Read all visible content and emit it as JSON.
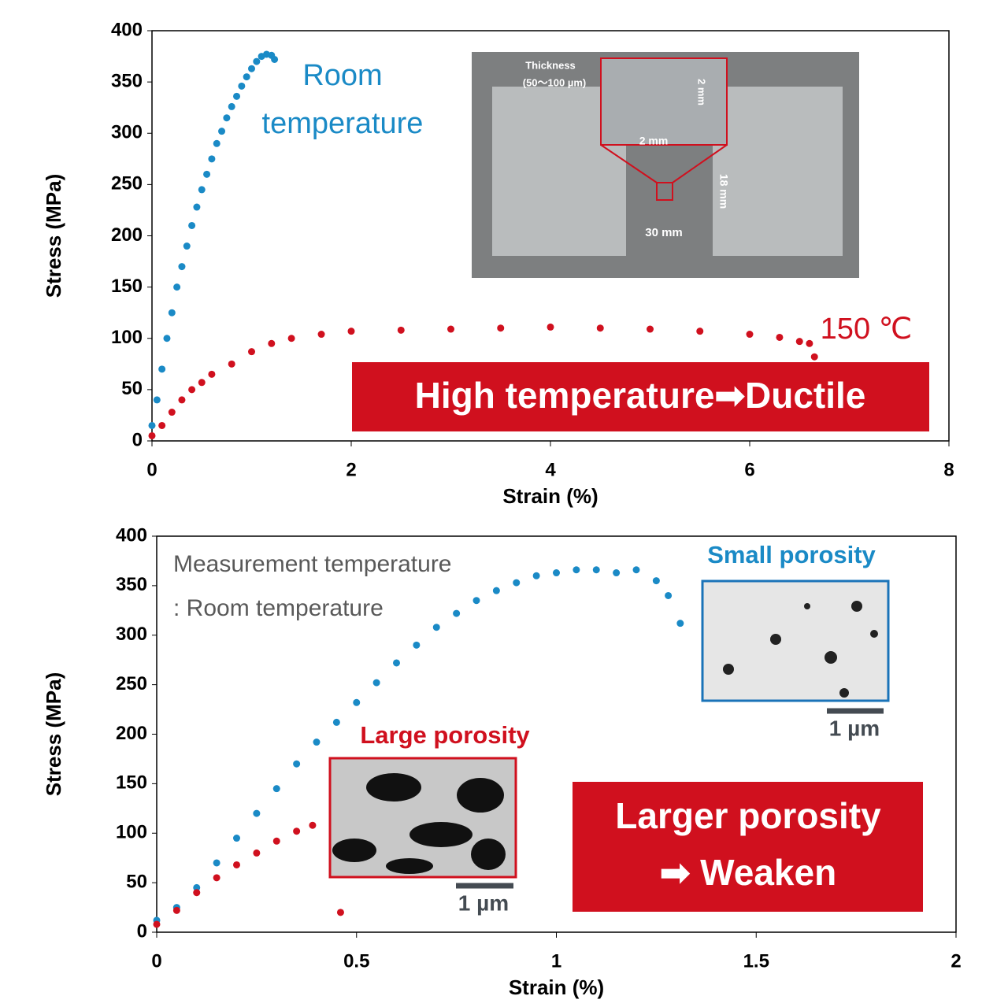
{
  "chart_data": [
    {
      "type": "scatter",
      "x_label": "Strain (%)",
      "y_label": "Stress (MPa)",
      "xlim": [
        0,
        8
      ],
      "xticks": [
        0,
        2,
        4,
        6,
        8
      ],
      "ylim": [
        0,
        400
      ],
      "yticks": [
        0,
        50,
        100,
        150,
        200,
        250,
        300,
        350,
        400
      ],
      "series": [
        {
          "name": "Room temperature",
          "color": "#1a8ac6",
          "x": [
            0,
            0.05,
            0.1,
            0.15,
            0.2,
            0.25,
            0.3,
            0.35,
            0.4,
            0.45,
            0.5,
            0.55,
            0.6,
            0.65,
            0.7,
            0.75,
            0.8,
            0.85,
            0.9,
            0.95,
            1.0,
            1.05,
            1.1,
            1.15,
            1.2,
            1.23
          ],
          "values": [
            15,
            40,
            70,
            100,
            125,
            150,
            170,
            190,
            210,
            228,
            245,
            260,
            275,
            290,
            302,
            315,
            326,
            336,
            346,
            355,
            363,
            370,
            375,
            377,
            376,
            372
          ]
        },
        {
          "name": "150 ℃",
          "color": "#d0101e",
          "x": [
            0,
            0.1,
            0.2,
            0.3,
            0.4,
            0.5,
            0.6,
            0.8,
            1.0,
            1.2,
            1.4,
            1.7,
            2.0,
            2.5,
            3.0,
            3.5,
            4.0,
            4.5,
            5.0,
            5.5,
            6.0,
            6.3,
            6.5,
            6.6,
            6.65
          ],
          "values": [
            5,
            15,
            28,
            40,
            50,
            57,
            65,
            75,
            87,
            95,
            100,
            104,
            107,
            108,
            109,
            110,
            111,
            110,
            109,
            107,
            104,
            101,
            97,
            95,
            82
          ]
        }
      ],
      "annotations": [
        "High temperature➡Ductile"
      ],
      "inset_labels": [
        "Thickness",
        "(50〜100 µm)",
        "2 mm",
        "2 mm",
        "18 mm",
        "30 mm"
      ]
    },
    {
      "type": "scatter",
      "x_label": "Strain (%)",
      "y_label": "Stress (MPa)",
      "xlim": [
        0,
        2
      ],
      "xticks": [
        0,
        0.5,
        1,
        1.5,
        2
      ],
      "ylim": [
        0,
        400
      ],
      "yticks": [
        0,
        50,
        100,
        150,
        200,
        250,
        300,
        350,
        400
      ],
      "series": [
        {
          "name": "Small porosity",
          "color": "#1a8ac6",
          "x": [
            0,
            0.05,
            0.1,
            0.15,
            0.2,
            0.25,
            0.3,
            0.35,
            0.4,
            0.45,
            0.5,
            0.55,
            0.6,
            0.65,
            0.7,
            0.75,
            0.8,
            0.85,
            0.9,
            0.95,
            1.0,
            1.05,
            1.1,
            1.15,
            1.2,
            1.25,
            1.28,
            1.31
          ],
          "values": [
            12,
            25,
            45,
            70,
            95,
            120,
            145,
            170,
            192,
            212,
            232,
            252,
            272,
            290,
            308,
            322,
            335,
            345,
            353,
            360,
            363,
            366,
            366,
            363,
            366,
            355,
            340,
            312
          ]
        },
        {
          "name": "Large porosity",
          "color": "#d0101e",
          "x": [
            0,
            0.05,
            0.1,
            0.15,
            0.2,
            0.25,
            0.3,
            0.35,
            0.39,
            0.46
          ],
          "values": [
            8,
            22,
            40,
            55,
            68,
            80,
            92,
            102,
            108,
            20
          ]
        }
      ],
      "annotations": [
        "Measurement temperature",
        ": Room temperature",
        "Larger porosity",
        "➡ Weaken"
      ],
      "scale_labels": [
        "1 µm",
        "1 µm"
      ]
    }
  ]
}
